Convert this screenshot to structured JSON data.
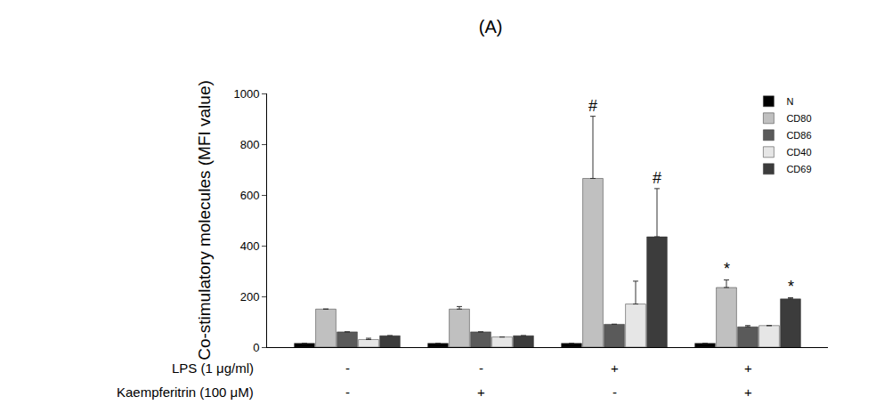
{
  "chart_data": {
    "type": "bar",
    "title": "(A)",
    "y_label": "Co-stimulatory molecules (MFI value)",
    "category_rows": [
      "LPS (1 μg/ml)",
      "Kaempferitrin (100 μM)"
    ],
    "categories": [
      [
        "-",
        "-"
      ],
      [
        "-",
        "+"
      ],
      [
        "+",
        "-"
      ],
      [
        "+",
        "+"
      ]
    ],
    "series": [
      {
        "name": "N",
        "color": "#000000",
        "values": [
          15,
          15,
          15,
          15
        ],
        "errors": [
          null,
          null,
          null,
          null
        ]
      },
      {
        "name": "CD80",
        "color": "#c0c0c0",
        "values": [
          150,
          150,
          665,
          235
        ],
        "errors": [
          null,
          10,
          245,
          30
        ]
      },
      {
        "name": "CD86",
        "color": "#5a5a5a",
        "values": [
          60,
          60,
          90,
          80
        ],
        "errors": [
          null,
          null,
          null,
          5
        ]
      },
      {
        "name": "CD40",
        "color": "#e6e6e6",
        "values": [
          30,
          40,
          170,
          85
        ],
        "errors": [
          5,
          null,
          90,
          null
        ]
      },
      {
        "name": "CD69",
        "color": "#3c3c3c",
        "values": [
          45,
          45,
          435,
          190
        ],
        "errors": [
          null,
          null,
          190,
          5
        ]
      }
    ],
    "annotations": [
      {
        "text": "#",
        "category": 2,
        "series": "CD80"
      },
      {
        "text": "#",
        "category": 2,
        "series": "CD69"
      },
      {
        "text": "*",
        "category": 3,
        "series": "CD80"
      },
      {
        "text": "*",
        "category": 3,
        "series": "CD69"
      }
    ],
    "ylim": [
      0,
      1000
    ],
    "yticks": [
      0,
      200,
      400,
      600,
      800,
      1000
    ],
    "grid": false,
    "legend": "top right"
  }
}
